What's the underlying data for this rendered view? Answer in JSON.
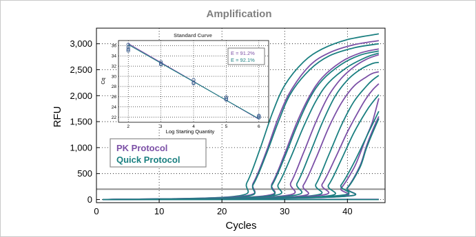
{
  "colors": {
    "pk": "#7b4fa6",
    "quick": "#1a7f80",
    "threshold": "#8f8f8f",
    "grid": "#000000",
    "frame": "#c8c8c8"
  },
  "chart_data": [
    {
      "type": "line",
      "title": "Amplification",
      "xlabel": "Cycles",
      "ylabel": "RFU",
      "xlim": [
        0,
        46
      ],
      "ylim": [
        -60,
        3300
      ],
      "x_ticks": [
        0,
        10,
        20,
        30,
        40
      ],
      "x_tick_labels": [
        "0",
        "10",
        "20",
        "30",
        "40"
      ],
      "y_ticks": [
        0,
        500,
        1000,
        1500,
        2000,
        2500,
        3000
      ],
      "y_tick_labels": [
        "0",
        "500",
        "1,000",
        "1,500",
        "2,000",
        "2,500",
        "3,000"
      ],
      "grid": true,
      "threshold": 200,
      "legend": {
        "placement": "bottom-left",
        "entries": [
          {
            "name": "PK Protocol",
            "color": "#7b4fa6"
          },
          {
            "name": "Quick Protocol",
            "color": "#1a7f80"
          }
        ]
      },
      "series": [
        {
          "group": "Quick Protocol",
          "color": "#1a7f80",
          "x": [
            1,
            22,
            24,
            26,
            28,
            30,
            33,
            36,
            40,
            45
          ],
          "y": [
            0,
            60,
            330,
            950,
            1650,
            2200,
            2650,
            2900,
            3080,
            3190
          ]
        },
        {
          "group": "PK Protocol",
          "color": "#7b4fa6",
          "x": [
            1,
            23,
            25,
            27,
            29,
            31,
            34,
            37,
            41,
            45
          ],
          "y": [
            0,
            60,
            320,
            900,
            1580,
            2100,
            2580,
            2820,
            2980,
            3060
          ]
        },
        {
          "group": "Quick Protocol",
          "color": "#1a7f80",
          "x": [
            1,
            23,
            25,
            27,
            29,
            31,
            34,
            37,
            41,
            45
          ],
          "y": [
            0,
            50,
            290,
            850,
            1500,
            2050,
            2500,
            2760,
            2920,
            3000
          ]
        },
        {
          "group": "PK Protocol",
          "color": "#7b4fa6",
          "x": [
            1,
            26,
            28,
            30,
            32,
            34,
            36,
            39,
            42,
            45
          ],
          "y": [
            0,
            60,
            310,
            880,
            1500,
            2000,
            2350,
            2650,
            2820,
            2900
          ]
        },
        {
          "group": "Quick Protocol",
          "color": "#1a7f80",
          "x": [
            1,
            26,
            28,
            30,
            32,
            34,
            36,
            39,
            42,
            45
          ],
          "y": [
            0,
            50,
            280,
            820,
            1430,
            1950,
            2300,
            2600,
            2780,
            2860
          ]
        },
        {
          "group": "Quick Protocol",
          "color": "#1a7f80",
          "x": [
            1,
            27,
            29,
            31,
            33,
            35,
            37,
            40,
            43,
            45
          ],
          "y": [
            0,
            60,
            300,
            820,
            1400,
            1900,
            2250,
            2550,
            2740,
            2820
          ]
        },
        {
          "group": "PK Protocol",
          "color": "#7b4fa6",
          "x": [
            1,
            29,
            31,
            33,
            35,
            37,
            39,
            41,
            43,
            45
          ],
          "y": [
            0,
            60,
            330,
            900,
            1500,
            2000,
            2330,
            2550,
            2700,
            2790
          ]
        },
        {
          "group": "Quick Protocol",
          "color": "#1a7f80",
          "x": [
            1,
            30,
            32,
            34,
            36,
            38,
            40,
            42,
            44,
            45
          ],
          "y": [
            0,
            60,
            320,
            880,
            1480,
            1980,
            2300,
            2500,
            2620,
            2640
          ]
        },
        {
          "group": "PK Protocol",
          "color": "#7b4fa6",
          "x": [
            1,
            31,
            33,
            35,
            37,
            39,
            41,
            43,
            44,
            45
          ],
          "y": [
            0,
            50,
            280,
            800,
            1380,
            1850,
            2180,
            2360,
            2430,
            2460
          ]
        },
        {
          "group": "Quick Protocol",
          "color": "#1a7f80",
          "x": [
            1,
            33,
            35,
            37,
            39,
            41,
            43,
            44,
            45
          ],
          "y": [
            0,
            60,
            300,
            850,
            1420,
            1880,
            2180,
            2300,
            2390
          ]
        },
        {
          "group": "PK Protocol",
          "color": "#7b4fa6",
          "x": [
            1,
            34,
            36,
            38,
            40,
            42,
            43,
            44,
            45
          ],
          "y": [
            0,
            60,
            300,
            780,
            1300,
            1750,
            1950,
            2110,
            2230
          ]
        },
        {
          "group": "Quick Protocol",
          "color": "#1a7f80",
          "x": [
            1,
            35,
            37,
            39,
            41,
            43,
            44,
            45
          ],
          "y": [
            0,
            50,
            280,
            760,
            1280,
            1700,
            1870,
            2020
          ]
        },
        {
          "group": "PK Protocol",
          "color": "#7b4fa6",
          "x": [
            1,
            37,
            39,
            41,
            42,
            43,
            44,
            45
          ],
          "y": [
            0,
            50,
            220,
            600,
            880,
            1200,
            1500,
            1950
          ]
        },
        {
          "group": "Quick Protocol",
          "color": "#1a7f80",
          "x": [
            1,
            37,
            39,
            41,
            43,
            44,
            45
          ],
          "y": [
            0,
            60,
            280,
            700,
            1200,
            1450,
            1700
          ]
        },
        {
          "group": "PK Protocol",
          "color": "#7b4fa6",
          "x": [
            1,
            38,
            40,
            42,
            43,
            44,
            45
          ],
          "y": [
            0,
            50,
            230,
            650,
            1020,
            1330,
            1600
          ]
        },
        {
          "group": "Quick Protocol",
          "color": "#1a7f80",
          "x": [
            1,
            38,
            40,
            42,
            43,
            44,
            45
          ],
          "y": [
            0,
            50,
            220,
            620,
            980,
            1280,
            1560
          ]
        },
        {
          "group": "PK Protocol",
          "color": "#7b4fa6",
          "x": [
            1,
            45
          ],
          "y": [
            0,
            5
          ]
        },
        {
          "group": "Quick Protocol",
          "color": "#1a7f80",
          "x": [
            1,
            45
          ],
          "y": [
            0,
            0
          ]
        }
      ]
    },
    {
      "type": "scatter",
      "title": "Standard Curve",
      "xlabel": "Log Starting Quantity",
      "ylabel": "Cq",
      "xlim": [
        1.7,
        6.3
      ],
      "ylim": [
        21,
        37
      ],
      "x_ticks": [
        2,
        3,
        4,
        5,
        6
      ],
      "x_tick_labels": [
        "2",
        "3",
        "4",
        "5",
        "6"
      ],
      "y_ticks": [
        22,
        24,
        26,
        28,
        30,
        32,
        34,
        36
      ],
      "y_tick_labels": [
        "22",
        "24",
        "26",
        "28",
        "30",
        "32",
        "34",
        "36"
      ],
      "grid": true,
      "annotations": [
        "E = 91.2%",
        "E = 92.1%"
      ],
      "annotation_colors": [
        "#7b4fa6",
        "#1a7f80"
      ],
      "fit_lines": [
        {
          "color": "#7b4fa6",
          "x": [
            2,
            6
          ],
          "y": [
            36.4,
            21.6
          ]
        },
        {
          "color": "#1a7f80",
          "x": [
            2,
            6
          ],
          "y": [
            36.2,
            21.7
          ]
        }
      ],
      "points": {
        "x": [
          2,
          2,
          2,
          2,
          3,
          3,
          3,
          4,
          4,
          4,
          5,
          5,
          5,
          6,
          6,
          6
        ],
        "y": [
          36.2,
          35.7,
          35.3,
          35.0,
          32.8,
          32.5,
          32.3,
          29.3,
          28.8,
          28.6,
          25.9,
          25.6,
          25.4,
          22.3,
          22.1,
          21.9
        ]
      }
    }
  ]
}
